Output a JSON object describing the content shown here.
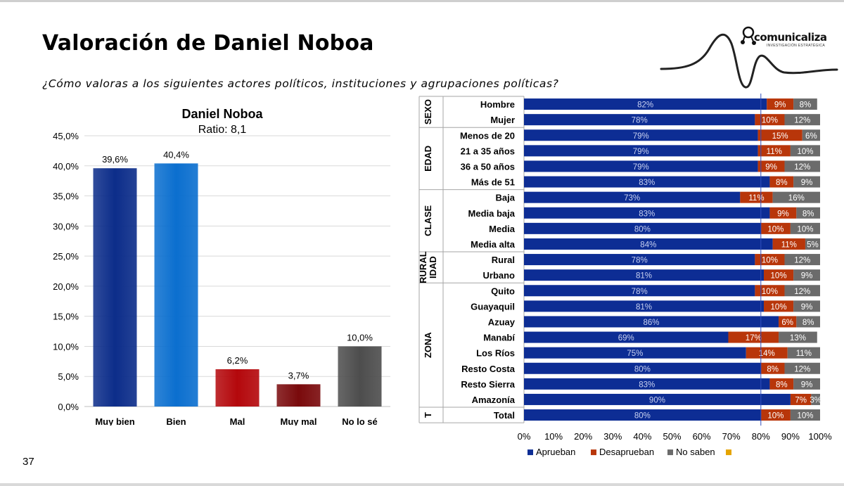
{
  "page": {
    "title": "Valoración de Daniel Noboa",
    "subtitle": "¿Cómo valoras a los siguientes actores políticos, instituciones y agrupaciones políticas?",
    "page_number": "37"
  },
  "logo": {
    "name": "comunicaliza",
    "tagline": "INVESTIGACIÓN ESTRATÉGICA"
  },
  "colors": {
    "muy_bien": "#0c2d8a",
    "bien": "#0b6fcf",
    "mal": "#b4080c",
    "muy_mal": "#7a0a0c",
    "no_lo_se": "#4d4d4d",
    "aprueban": "#0d2d94",
    "desaprueban": "#b8360a",
    "no_saben": "#6b6b6b",
    "extra": "#e5a400"
  },
  "chart_data": [
    {
      "type": "bar",
      "title": "Daniel Noboa",
      "subtitle": "Ratio: 8,1",
      "categories": [
        "Muy bien",
        "Bien",
        "Mal",
        "Muy mal",
        "No lo sé"
      ],
      "values": [
        39.6,
        40.4,
        6.2,
        3.7,
        10.0
      ],
      "value_labels": [
        "39,6%",
        "40,4%",
        "6,2%",
        "3,7%",
        "10,0%"
      ],
      "y_ticks": [
        "0,0%",
        "5,0%",
        "10,0%",
        "15,0%",
        "20,0%",
        "25,0%",
        "30,0%",
        "35,0%",
        "40,0%",
        "45,0%"
      ],
      "ylim": [
        0,
        45
      ],
      "grid": true
    },
    {
      "type": "bar",
      "orientation": "horizontal",
      "stacked": true,
      "xlim": [
        0,
        100
      ],
      "x_ticks": [
        "0%",
        "10%",
        "20%",
        "30%",
        "40%",
        "50%",
        "60%",
        "70%",
        "80%",
        "90%",
        "100%"
      ],
      "reference_line": 80,
      "legend": [
        "Aprueban",
        "Desaprueban",
        "No saben",
        ""
      ],
      "legend_position": "bottom",
      "groups": [
        {
          "label": "SEXO",
          "rows": [
            {
              "label": "Hombre",
              "values": [
                82,
                9,
                8
              ]
            },
            {
              "label": "Mujer",
              "values": [
                78,
                10,
                12
              ]
            }
          ]
        },
        {
          "label": "EDAD",
          "rows": [
            {
              "label": "Menos de 20",
              "values": [
                79,
                15,
                6
              ]
            },
            {
              "label": "21 a 35 años",
              "values": [
                79,
                11,
                10
              ]
            },
            {
              "label": "36 a 50 años",
              "values": [
                79,
                9,
                12
              ]
            },
            {
              "label": "Más de 51",
              "values": [
                83,
                8,
                9
              ]
            }
          ]
        },
        {
          "label": "CLASE",
          "rows": [
            {
              "label": "Baja",
              "values": [
                73,
                11,
                16
              ]
            },
            {
              "label": "Media baja",
              "values": [
                83,
                9,
                8
              ]
            },
            {
              "label": "Media",
              "values": [
                80,
                10,
                10
              ]
            },
            {
              "label": "Media alta",
              "values": [
                84,
                11,
                5
              ]
            }
          ]
        },
        {
          "label": "RURAL IDAD",
          "label_lines": [
            "RURAL",
            "IDAD"
          ],
          "rows": [
            {
              "label": "Rural",
              "values": [
                78,
                10,
                12
              ]
            },
            {
              "label": "Urbano",
              "values": [
                81,
                10,
                9
              ]
            }
          ]
        },
        {
          "label": "ZONA",
          "rows": [
            {
              "label": "Quito",
              "values": [
                78,
                10,
                12
              ]
            },
            {
              "label": "Guayaquil",
              "values": [
                81,
                10,
                9
              ]
            },
            {
              "label": "Azuay",
              "values": [
                86,
                6,
                8
              ]
            },
            {
              "label": "Manabí",
              "values": [
                69,
                17,
                13
              ]
            },
            {
              "label": "Los Ríos",
              "values": [
                75,
                14,
                11
              ]
            },
            {
              "label": "Resto Costa",
              "values": [
                80,
                8,
                12
              ]
            },
            {
              "label": "Resto Sierra",
              "values": [
                83,
                8,
                9
              ]
            },
            {
              "label": "Amazonía",
              "values": [
                90,
                7,
                3
              ]
            }
          ]
        },
        {
          "label": "T",
          "rows": [
            {
              "label": "Total",
              "values": [
                80,
                10,
                10
              ]
            }
          ]
        }
      ]
    }
  ]
}
